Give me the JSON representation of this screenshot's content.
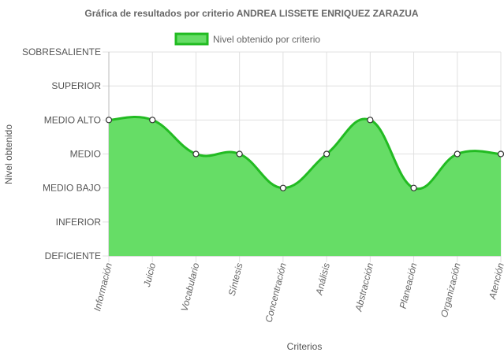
{
  "chart_data": {
    "type": "area",
    "title": "Gráfica de resultados por criterio ANDREA LISSETE ENRIQUEZ ZARAZUA",
    "xlabel": "Criterios",
    "ylabel": "Nivel obtenido",
    "y_levels": [
      "DEFICIENTE",
      "INFERIOR",
      "MEDIO BAJO",
      "MEDIO",
      "MEDIO ALTO",
      "SUPERIOR",
      "SOBRESALIENTE"
    ],
    "ylim": [
      0,
      6
    ],
    "categories": [
      "Información",
      "Juicio",
      "Vocabulario",
      "Síntesis",
      "Concentración",
      "Análisis",
      "Abstracción",
      "Planeación",
      "Organización",
      "Atención"
    ],
    "series": [
      {
        "name": "Nivel obtenido por criterio",
        "values": [
          4,
          4,
          3,
          3,
          2,
          3,
          4,
          2,
          3,
          3
        ],
        "value_labels": [
          "MEDIO ALTO",
          "MEDIO ALTO",
          "MEDIO",
          "MEDIO",
          "MEDIO BAJO",
          "MEDIO",
          "MEDIO ALTO",
          "MEDIO BAJO",
          "MEDIO",
          "MEDIO"
        ]
      }
    ],
    "grid": true,
    "legend_position": "top",
    "colors": {
      "fill": "#66dd66",
      "line": "#22bb22",
      "point_fill": "#ffffff",
      "point_stroke": "#333333",
      "grid": "#e0e0e0"
    }
  }
}
